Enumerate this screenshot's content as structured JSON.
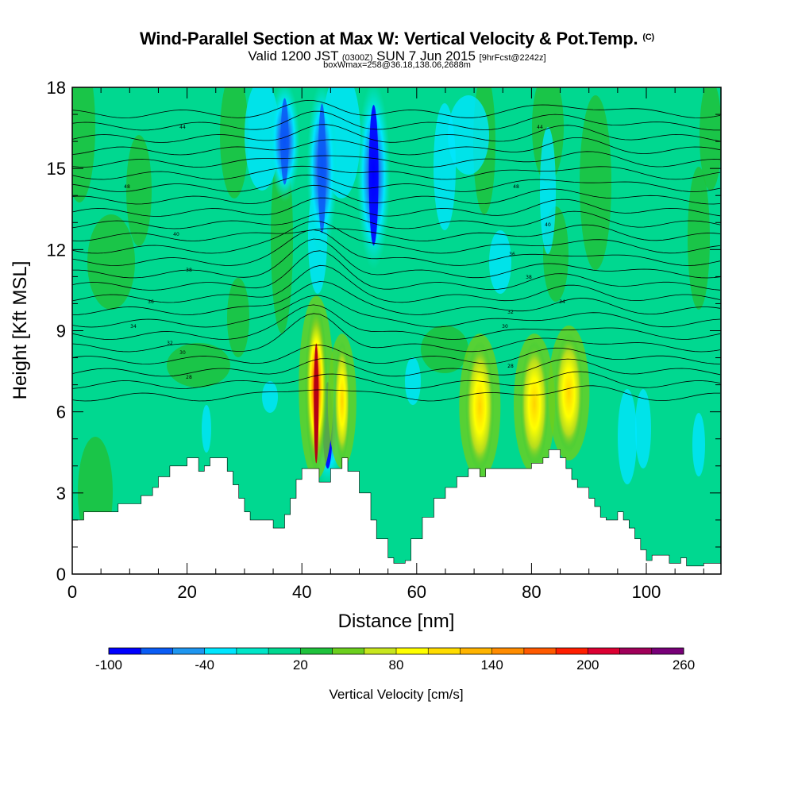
{
  "header": {
    "title": "Wind-Parallel Section at Max W: Vertical Velocity & Pot.Temp.",
    "title_mark": "(C)",
    "valid_prefix": "Valid 1200 JST",
    "valid_utc": "(0300Z)",
    "valid_date": "SUN 7 Jun 2015",
    "forecast": "[9hrFcst@2242z]",
    "box_info": "boxWmax=258@36.18,138.06,2688m"
  },
  "chart_data": {
    "type": "heatmap",
    "xlabel": "Distance [nm]",
    "ylabel": "Height [Kft MSL]",
    "xlim": [
      0,
      113
    ],
    "ylim": [
      0,
      18
    ],
    "x_ticks": [
      "0",
      "20",
      "40",
      "60",
      "80",
      "100"
    ],
    "y_ticks": [
      "0",
      "3",
      "6",
      "9",
      "12",
      "15",
      "18"
    ],
    "colorbar": {
      "label": "Vertical Velocity [cm/s]",
      "tick_labels": [
        "-100",
        "-40",
        "20",
        "80",
        "140",
        "200",
        "260"
      ],
      "levels": [
        -100,
        -80,
        -60,
        -40,
        -20,
        0,
        20,
        40,
        60,
        80,
        100,
        120,
        140,
        160,
        180,
        200,
        220,
        240,
        260
      ],
      "colors": [
        "#0000ff",
        "#0a5cf5",
        "#1e96f0",
        "#00e6ff",
        "#00e6c8",
        "#00d890",
        "#1fc23c",
        "#6ccf1e",
        "#c8e61e",
        "#ffff00",
        "#ffdc00",
        "#ffb400",
        "#ff8c00",
        "#ff5a00",
        "#ff1e00",
        "#dc0032",
        "#a0005a",
        "#780078"
      ]
    },
    "terrain_kft": [
      [
        0,
        2.0
      ],
      [
        2,
        2.3
      ],
      [
        5,
        2.3
      ],
      [
        8,
        2.6
      ],
      [
        12,
        2.9
      ],
      [
        14,
        3.2
      ],
      [
        15,
        3.6
      ],
      [
        17,
        4.0
      ],
      [
        20,
        4.3
      ],
      [
        22,
        3.8
      ],
      [
        23,
        4.0
      ],
      [
        24,
        4.3
      ],
      [
        26,
        4.3
      ],
      [
        27,
        3.8
      ],
      [
        28,
        3.3
      ],
      [
        29,
        2.8
      ],
      [
        30,
        2.3
      ],
      [
        31,
        2.0
      ],
      [
        33,
        2.0
      ],
      [
        35,
        1.7
      ],
      [
        37,
        2.2
      ],
      [
        38,
        2.8
      ],
      [
        39,
        3.5
      ],
      [
        40,
        3.9
      ],
      [
        42,
        3.9
      ],
      [
        43,
        3.4
      ],
      [
        45,
        3.9
      ],
      [
        47,
        4.3
      ],
      [
        48,
        3.8
      ],
      [
        50,
        3.0
      ],
      [
        52,
        2.0
      ],
      [
        53,
        1.3
      ],
      [
        55,
        0.6
      ],
      [
        56,
        0.4
      ],
      [
        58,
        0.5
      ],
      [
        59,
        1.3
      ],
      [
        61,
        2.1
      ],
      [
        63,
        2.8
      ],
      [
        65,
        3.2
      ],
      [
        67,
        3.6
      ],
      [
        69,
        3.9
      ],
      [
        71,
        3.6
      ],
      [
        72,
        3.9
      ],
      [
        75,
        3.9
      ],
      [
        79,
        3.9
      ],
      [
        80,
        4.1
      ],
      [
        82,
        4.3
      ],
      [
        83,
        4.6
      ],
      [
        85,
        4.3
      ],
      [
        86,
        3.9
      ],
      [
        87,
        3.5
      ],
      [
        88,
        3.2
      ],
      [
        90,
        2.8
      ],
      [
        91,
        2.5
      ],
      [
        92,
        2.1
      ],
      [
        93,
        2.0
      ],
      [
        95,
        2.3
      ],
      [
        96,
        2.0
      ],
      [
        97,
        1.7
      ],
      [
        98,
        1.3
      ],
      [
        99,
        0.9
      ],
      [
        100,
        0.5
      ],
      [
        101,
        0.7
      ],
      [
        103,
        0.7
      ],
      [
        104,
        0.4
      ],
      [
        106,
        0.6
      ],
      [
        107,
        0.3
      ],
      [
        110,
        0.4
      ],
      [
        113,
        0.5
      ]
    ],
    "updrafts": [
      {
        "x": 42.5,
        "z0": 3.8,
        "z1": 10.0,
        "peak_cm_s": 258
      },
      {
        "x": 47.0,
        "z0": 4.2,
        "z1": 8.6,
        "peak_cm_s": 90
      },
      {
        "x": 71.0,
        "z0": 3.8,
        "z1": 8.6,
        "peak_cm_s": 100
      },
      {
        "x": 80.5,
        "z0": 4.0,
        "z1": 8.6,
        "peak_cm_s": 110
      },
      {
        "x": 86.5,
        "z0": 4.5,
        "z1": 8.9,
        "peak_cm_s": 100
      }
    ],
    "downdrafts": [
      {
        "x": 44.5,
        "z0": 3.5,
        "z1": 7.5,
        "peak_cm_s": -100
      },
      {
        "x": 52.5,
        "z0": 11.5,
        "z1": 18.0,
        "peak_cm_s": -100
      },
      {
        "x": 43.5,
        "z0": 12.0,
        "z1": 18.0,
        "peak_cm_s": -80
      },
      {
        "x": 37.0,
        "z0": 14.0,
        "z1": 18.0,
        "peak_cm_s": -60
      }
    ],
    "theta_contour_labels": [
      "44",
      "44",
      "48",
      "48",
      "40",
      "40",
      "38",
      "38",
      "36",
      "36",
      "34",
      "34",
      "32",
      "32",
      "30",
      "30",
      "28",
      "28"
    ]
  }
}
